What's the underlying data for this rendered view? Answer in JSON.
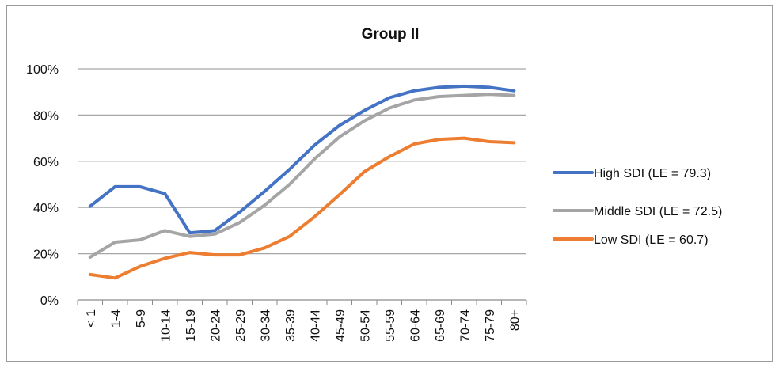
{
  "chart_data": {
    "type": "line",
    "title": "Group II",
    "xlabel": "",
    "ylabel": "",
    "categories": [
      "< 1",
      "1-4",
      "5-9",
      "10-14",
      "15-19",
      "20-24",
      "25-29",
      "30-34",
      "35-39",
      "40-44",
      "45-49",
      "50-54",
      "55-59",
      "60-64",
      "65-69",
      "70-74",
      "75-79",
      "80+"
    ],
    "y_tick_labels": [
      "0%",
      "20%",
      "40%",
      "60%",
      "80%",
      "100%"
    ],
    "ylim": [
      0,
      100
    ],
    "grid": true,
    "legend_position": "right",
    "series": [
      {
        "name": "High SDI (LE = 79.3)",
        "color": "#4472c4",
        "values": [
          40.5,
          49,
          49,
          46,
          29,
          30,
          38,
          47,
          56.5,
          67,
          75.5,
          82,
          87.5,
          90.5,
          92,
          92.5,
          92,
          90.5
        ]
      },
      {
        "name": "Middle SDI (LE = 72.5)",
        "color": "#a5a5a5",
        "values": [
          18.5,
          25,
          26,
          30,
          27.5,
          28.5,
          33.5,
          41,
          50,
          61,
          70.5,
          77.5,
          83,
          86.5,
          88,
          88.5,
          89,
          88.5
        ]
      },
      {
        "name": "Low SDI (LE = 60.7)",
        "color": "#ed7d31",
        "values": [
          11,
          9.5,
          14.5,
          18,
          20.5,
          19.5,
          19.5,
          22.5,
          27.5,
          36,
          45.5,
          55.5,
          62,
          67.5,
          69.5,
          70,
          68.5,
          68
        ]
      }
    ]
  }
}
